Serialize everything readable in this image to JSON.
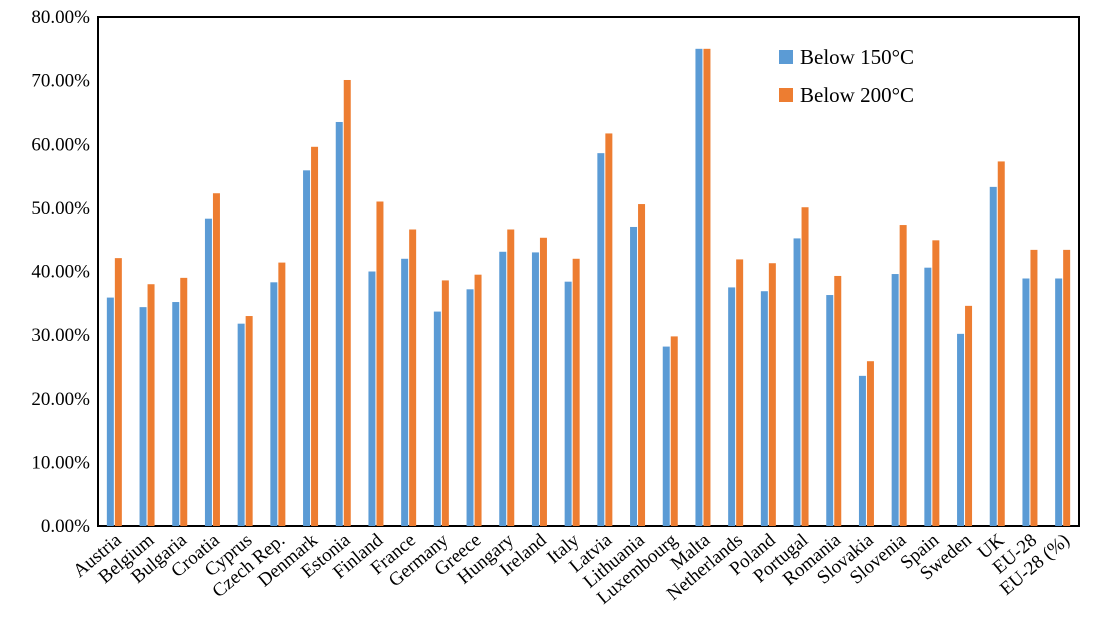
{
  "chart_data": {
    "type": "bar",
    "categories": [
      "Austria",
      "Belgium",
      "Bulgaria",
      "Croatia",
      "Cyprus",
      "Czech Rep.",
      "Denmark",
      "Estonia",
      "Finland",
      "France",
      "Germany",
      "Greece",
      "Hungary",
      "Ireland",
      "Italy",
      "Latvia",
      "Lithuania",
      "Luxembourg",
      "Malta",
      "Netherlands",
      "Poland",
      "Portugal",
      "Romania",
      "Slovakia",
      "Slovenia",
      "Spain",
      "Sweden",
      "UK",
      "EU-28",
      "EU-28 (%)"
    ],
    "series": [
      {
        "name": "Below 150°C",
        "color": "#5B9BD5",
        "values": [
          35.9,
          34.4,
          35.2,
          48.3,
          31.8,
          38.3,
          55.9,
          63.5,
          40.0,
          42.0,
          33.7,
          37.2,
          43.1,
          43.0,
          38.4,
          58.6,
          47.0,
          28.2,
          75.0,
          37.5,
          36.9,
          45.2,
          36.3,
          23.6,
          39.6,
          40.6,
          30.2,
          53.3,
          38.9,
          38.9
        ]
      },
      {
        "name": "Below 200°C",
        "color": "#ED7D31",
        "values": [
          42.1,
          38.0,
          39.0,
          52.3,
          33.0,
          41.4,
          59.6,
          70.1,
          51.0,
          46.6,
          38.6,
          39.5,
          46.6,
          45.3,
          42.0,
          61.7,
          50.6,
          29.8,
          75.0,
          41.9,
          41.3,
          50.1,
          39.3,
          25.9,
          47.3,
          44.9,
          34.6,
          57.3,
          43.4,
          43.4
        ]
      }
    ],
    "ylim": [
      0,
      80
    ],
    "yticks": [
      0,
      10,
      20,
      30,
      40,
      50,
      60,
      70,
      80
    ],
    "ytick_labels": [
      "0.00%",
      "10.00%",
      "20.00%",
      "30.00%",
      "40.00%",
      "50.00%",
      "60.00%",
      "70.00%",
      "80.00%"
    ],
    "grid": false,
    "legend_position": "top-right"
  }
}
